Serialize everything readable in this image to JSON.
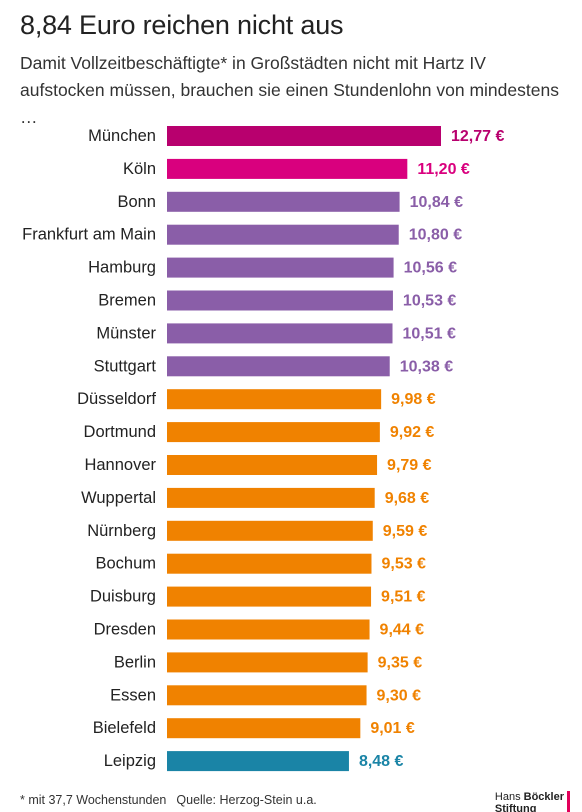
{
  "title": "8,84 Euro reichen nicht aus",
  "subtitle": "Damit Vollzeitbeschäftigte* in Großstädten nicht mit Hartz IV aufstocken müssen, brauchen sie einen Stundenlohn von mindestens …",
  "footer": {
    "note": "* mit 37,7 Wochenstunden",
    "source": "Quelle: Herzog-Stein u.a."
  },
  "logo": {
    "line1_plain": "Hans",
    "line1_bold": "Böckler",
    "line2_bold": "Stiftung",
    "accent_color": "#e2005a"
  },
  "colors": {
    "magenta_dark": "#b8006e",
    "magenta": "#d9007e",
    "purple": "#8a5ea8",
    "orange": "#f08200",
    "teal": "#1a84a6"
  },
  "chart_data": {
    "type": "bar",
    "orientation": "horizontal",
    "xlim": [
      0,
      13
    ],
    "grid": false,
    "legend": "none",
    "categories": [
      "München",
      "Köln",
      "Bonn",
      "Frankfurt am Main",
      "Hamburg",
      "Bremen",
      "Münster",
      "Stuttgart",
      "Düsseldorf",
      "Dortmund",
      "Hannover",
      "Wuppertal",
      "Nürnberg",
      "Bochum",
      "Duisburg",
      "Dresden",
      "Berlin",
      "Essen",
      "Bielefeld",
      "Leipzig"
    ],
    "values": [
      12.77,
      11.2,
      10.84,
      10.8,
      10.56,
      10.53,
      10.51,
      10.38,
      9.98,
      9.92,
      9.79,
      9.68,
      9.59,
      9.53,
      9.51,
      9.44,
      9.35,
      9.3,
      9.01,
      8.48
    ],
    "value_labels": [
      "12,77 €",
      "11,20 €",
      "10,84 €",
      "10,80 €",
      "10,56 €",
      "10,53 €",
      "10,51 €",
      "10,38 €",
      "9,98 €",
      "9,92 €",
      "9,79 €",
      "9,68 €",
      "9,59 €",
      "9,53 €",
      "9,51 €",
      "9,44 €",
      "9,35 €",
      "9,30 €",
      "9,01 €",
      "8,48 €"
    ],
    "bar_colors": [
      "#b8006e",
      "#d9007e",
      "#8a5ea8",
      "#8a5ea8",
      "#8a5ea8",
      "#8a5ea8",
      "#8a5ea8",
      "#8a5ea8",
      "#f08200",
      "#f08200",
      "#f08200",
      "#f08200",
      "#f08200",
      "#f08200",
      "#f08200",
      "#f08200",
      "#f08200",
      "#f08200",
      "#f08200",
      "#1a84a6"
    ]
  }
}
